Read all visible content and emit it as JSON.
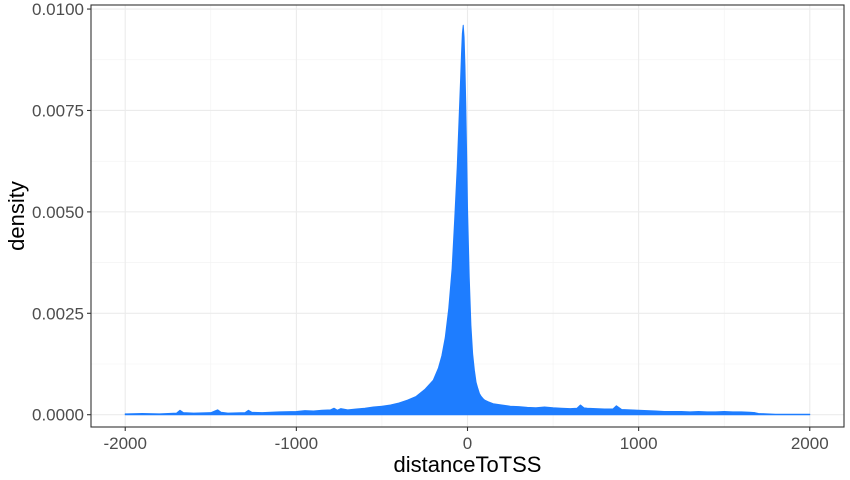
{
  "chart_data": {
    "type": "area",
    "title": "",
    "xlabel": "distanceToTSS",
    "ylabel": "density",
    "xlim": [
      -2000,
      2000
    ],
    "ylim": [
      0,
      0.0101
    ],
    "x_ticks": [
      -2000,
      -1000,
      0,
      1000,
      2000
    ],
    "x_tick_labels": [
      "-2000",
      "-1000",
      "0",
      "1000",
      "2000"
    ],
    "y_ticks": [
      0,
      0.0025,
      0.005,
      0.0075,
      0.01
    ],
    "y_tick_labels": [
      "0.0000",
      "0.0025",
      "0.0050",
      "0.0075",
      "0.0100"
    ],
    "grid": true,
    "legend": "none",
    "fill_color": "#1e7dff",
    "series": [
      {
        "x": [
          -2000,
          -1900,
          -1800,
          -1700,
          -1680,
          -1660,
          -1600,
          -1500,
          -1460,
          -1440,
          -1400,
          -1300,
          -1280,
          -1260,
          -1200,
          -1100,
          -1000,
          -950,
          -900,
          -850,
          -800,
          -780,
          -760,
          -740,
          -700,
          -650,
          -600,
          -550,
          -500,
          -450,
          -400,
          -350,
          -300,
          -250,
          -200,
          -170,
          -150,
          -130,
          -110,
          -90,
          -75,
          -60,
          -50,
          -40,
          -35,
          -30,
          -25,
          -20,
          -15,
          -10,
          -5,
          0,
          10,
          20,
          30,
          40,
          50,
          60,
          70,
          80,
          90,
          100,
          120,
          150,
          200,
          250,
          300,
          350,
          400,
          450,
          500,
          550,
          600,
          640,
          660,
          680,
          700,
          750,
          800,
          850,
          870,
          900,
          950,
          1000,
          1050,
          1100,
          1150,
          1200,
          1250,
          1300,
          1350,
          1400,
          1450,
          1500,
          1550,
          1600,
          1650,
          1680,
          1700,
          1750,
          1800,
          1900,
          2000
        ],
        "y": [
          2e-05,
          3e-05,
          2e-05,
          4e-05,
          0.00011,
          5e-05,
          4e-05,
          5e-05,
          0.00012,
          6e-05,
          4e-05,
          5e-05,
          0.00011,
          6e-05,
          5e-05,
          7e-05,
          8e-05,
          0.0001,
          9e-05,
          0.00011,
          0.00012,
          0.00016,
          0.00011,
          0.00015,
          0.00012,
          0.00014,
          0.00016,
          0.00019,
          0.00021,
          0.00024,
          0.00029,
          0.00036,
          0.00045,
          0.00062,
          0.00085,
          0.00115,
          0.00145,
          0.0019,
          0.0026,
          0.0036,
          0.0048,
          0.0061,
          0.0072,
          0.0083,
          0.0089,
          0.0094,
          0.0096,
          0.0093,
          0.0086,
          0.0076,
          0.0064,
          0.0051,
          0.0034,
          0.0022,
          0.0015,
          0.0011,
          0.0008,
          0.00065,
          0.00052,
          0.00045,
          0.0004,
          0.00036,
          0.00032,
          0.00027,
          0.00024,
          0.00021,
          0.0002,
          0.00018,
          0.00017,
          0.00019,
          0.00017,
          0.00016,
          0.00015,
          0.00016,
          0.00024,
          0.00017,
          0.00016,
          0.00015,
          0.00014,
          0.00014,
          0.00022,
          0.00013,
          0.00012,
          0.00011,
          0.0001,
          9e-05,
          8e-05,
          8e-05,
          8e-05,
          7e-05,
          8e-05,
          7e-05,
          7e-05,
          8e-05,
          7e-05,
          7e-05,
          6e-05,
          5e-05,
          3e-05,
          2e-05,
          1e-05,
          1e-05,
          1e-05
        ]
      }
    ]
  }
}
